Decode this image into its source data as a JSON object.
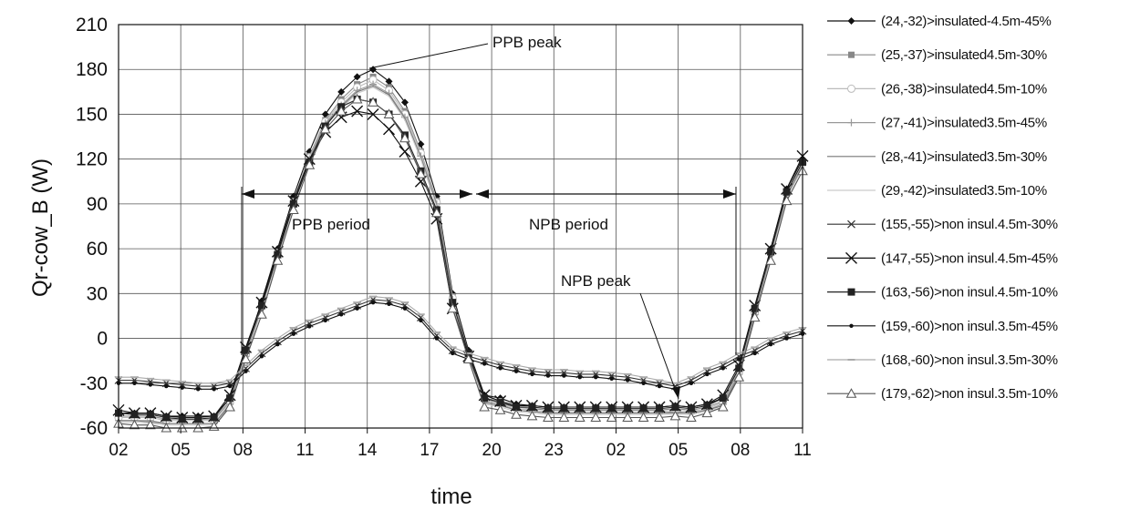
{
  "chart_data": {
    "type": "line",
    "xlabel": "time",
    "ylabel": "Qr-cow_B (W)",
    "ylim": [
      -60,
      210
    ],
    "yticks": [
      "-60",
      "-30",
      "0",
      "30",
      "60",
      "90",
      "120",
      "150",
      "180",
      "210"
    ],
    "xlim": [
      0,
      27
    ],
    "xticks": [
      "02",
      "05",
      "08",
      "11",
      "14",
      "17",
      "20",
      "23",
      "02",
      "05",
      "08",
      "11"
    ],
    "grid": true,
    "legend_position": "right",
    "annotations": {
      "ppb_peak": "PPB peak",
      "ppb_period": "PPB period",
      "npb_period": "NPB period",
      "npb_peak": "NPB peak"
    },
    "series": [
      {
        "name": "(24,-32)>insulated-4.5m-45%",
        "marker": "diamond",
        "color": "#111111",
        "values": [
          -50,
          -50,
          -50,
          -52,
          -52,
          -52,
          -52,
          -40,
          -8,
          25,
          60,
          95,
          125,
          150,
          165,
          175,
          180,
          172,
          158,
          130,
          95,
          30,
          -8,
          -38,
          -40,
          -44,
          -45,
          -46,
          -46,
          -46,
          -46,
          -46,
          -46,
          -46,
          -46,
          -45,
          -46,
          -44,
          -40,
          -20,
          20,
          60,
          100,
          120
        ]
      },
      {
        "name": "(25,-37)>insulated4.5m-30%",
        "marker": "square",
        "color": "#888888",
        "values": [
          -52,
          -52,
          -52,
          -54,
          -54,
          -54,
          -54,
          -42,
          -10,
          22,
          58,
          92,
          122,
          146,
          160,
          170,
          175,
          168,
          152,
          125,
          92,
          28,
          -10,
          -40,
          -42,
          -46,
          -47,
          -48,
          -48,
          -48,
          -48,
          -48,
          -48,
          -48,
          -48,
          -47,
          -48,
          -46,
          -42,
          -22,
          18,
          58,
          98,
          118
        ]
      },
      {
        "name": "(26,-38)>insulated4.5m-10%",
        "marker": "circle-open",
        "color": "#bbbbbb",
        "values": [
          -53,
          -53,
          -53,
          -55,
          -55,
          -55,
          -55,
          -43,
          -11,
          21,
          57,
          91,
          121,
          145,
          158,
          168,
          173,
          166,
          150,
          124,
          91,
          27,
          -11,
          -41,
          -43,
          -47,
          -48,
          -49,
          -49,
          -49,
          -49,
          -49,
          -49,
          -49,
          -49,
          -48,
          -49,
          -47,
          -43,
          -23,
          17,
          57,
          97,
          117
        ]
      },
      {
        "name": "(27,-41)>insulated3.5m-45%",
        "marker": "plus",
        "color": "#999999",
        "values": [
          -55,
          -55,
          -55,
          -57,
          -57,
          -57,
          -57,
          -44,
          -12,
          20,
          56,
          90,
          120,
          144,
          156,
          166,
          170,
          164,
          148,
          122,
          90,
          26,
          -12,
          -42,
          -44,
          -48,
          -49,
          -50,
          -50,
          -50,
          -50,
          -50,
          -50,
          -50,
          -50,
          -49,
          -50,
          -48,
          -44,
          -24,
          16,
          56,
          96,
          116
        ]
      },
      {
        "name": "(28,-41)>insulated3.5m-30%",
        "marker": "none",
        "color": "#777777",
        "values": [
          -55,
          -55,
          -56,
          -57,
          -57,
          -57,
          -57,
          -45,
          -12,
          20,
          55,
          89,
          119,
          143,
          155,
          165,
          169,
          163,
          147,
          121,
          89,
          25,
          -12,
          -43,
          -45,
          -48,
          -49,
          -50,
          -50,
          -50,
          -50,
          -50,
          -50,
          -50,
          -50,
          -50,
          -50,
          -48,
          -45,
          -25,
          15,
          55,
          95,
          115
        ]
      },
      {
        "name": "(29,-42)>insulated3.5m-10%",
        "marker": "none",
        "color": "#cccccc",
        "values": [
          -56,
          -56,
          -57,
          -58,
          -58,
          -58,
          -58,
          -46,
          -13,
          19,
          54,
          88,
          118,
          142,
          154,
          164,
          168,
          162,
          146,
          120,
          88,
          24,
          -13,
          -44,
          -46,
          -49,
          -50,
          -51,
          -51,
          -51,
          -51,
          -51,
          -51,
          -51,
          -51,
          -51,
          -51,
          -49,
          -46,
          -26,
          14,
          54,
          94,
          114
        ]
      },
      {
        "name": "(155,-55)>non insul.4.5m-30%",
        "marker": "x",
        "color": "#333333",
        "values": [
          -28,
          -28,
          -29,
          -30,
          -31,
          -32,
          -32,
          -30,
          -20,
          -10,
          -2,
          5,
          10,
          14,
          18,
          22,
          26,
          25,
          22,
          14,
          2,
          -8,
          -12,
          -15,
          -18,
          -20,
          -22,
          -23,
          -23,
          -24,
          -24,
          -25,
          -26,
          -28,
          -30,
          -32,
          -28,
          -22,
          -18,
          -12,
          -8,
          -2,
          2,
          5
        ]
      },
      {
        "name": "(147,-55)>non insul.4.5m-45%",
        "marker": "x-large",
        "color": "#111111",
        "values": [
          -48,
          -50,
          -50,
          -52,
          -53,
          -53,
          -52,
          -38,
          -6,
          24,
          58,
          92,
          120,
          138,
          148,
          152,
          150,
          140,
          125,
          105,
          80,
          20,
          -12,
          -38,
          -42,
          -45,
          -45,
          -46,
          -46,
          -46,
          -46,
          -46,
          -46,
          -46,
          -46,
          -45,
          -46,
          -44,
          -38,
          -18,
          22,
          60,
          100,
          122
        ]
      },
      {
        "name": "(163,-56)>non insul.4.5m-10%",
        "marker": "square-filled",
        "color": "#222222",
        "values": [
          -50,
          -51,
          -51,
          -53,
          -54,
          -54,
          -53,
          -40,
          -8,
          22,
          56,
          90,
          118,
          142,
          155,
          160,
          158,
          150,
          136,
          112,
          86,
          24,
          -10,
          -40,
          -43,
          -46,
          -46,
          -47,
          -47,
          -47,
          -47,
          -47,
          -47,
          -47,
          -47,
          -46,
          -47,
          -45,
          -40,
          -20,
          20,
          58,
          98,
          118
        ]
      },
      {
        "name": "(159,-60)>non insul.3.5m-45%",
        "marker": "dot",
        "color": "#111111",
        "values": [
          -30,
          -30,
          -31,
          -32,
          -33,
          -34,
          -34,
          -32,
          -22,
          -12,
          -4,
          3,
          8,
          12,
          16,
          20,
          24,
          23,
          20,
          12,
          0,
          -10,
          -14,
          -17,
          -20,
          -22,
          -24,
          -25,
          -25,
          -26,
          -26,
          -27,
          -28,
          -30,
          -32,
          -34,
          -30,
          -24,
          -20,
          -14,
          -10,
          -4,
          0,
          3
        ]
      },
      {
        "name": "(168,-60)>non insul.3.5m-30%",
        "marker": "dash",
        "color": "#aaaaaa",
        "values": [
          -26,
          -26,
          -27,
          -28,
          -29,
          -30,
          -30,
          -28,
          -18,
          -8,
          0,
          7,
          12,
          16,
          20,
          24,
          28,
          27,
          24,
          16,
          4,
          -6,
          -10,
          -13,
          -16,
          -18,
          -20,
          -21,
          -21,
          -22,
          -22,
          -23,
          -24,
          -26,
          -28,
          -30,
          -26,
          -20,
          -16,
          -10,
          -6,
          0,
          4,
          7
        ]
      },
      {
        "name": "(179,-62)>non insul.3.5m-10%",
        "marker": "triangle",
        "color": "#555555",
        "values": [
          -57,
          -58,
          -58,
          -60,
          -60,
          -60,
          -59,
          -46,
          -14,
          16,
          52,
          86,
          116,
          140,
          152,
          160,
          158,
          150,
          134,
          110,
          84,
          20,
          -14,
          -46,
          -48,
          -51,
          -52,
          -53,
          -53,
          -53,
          -53,
          -53,
          -53,
          -53,
          -53,
          -52,
          -53,
          -50,
          -46,
          -26,
          14,
          52,
          92,
          112
        ]
      }
    ]
  }
}
